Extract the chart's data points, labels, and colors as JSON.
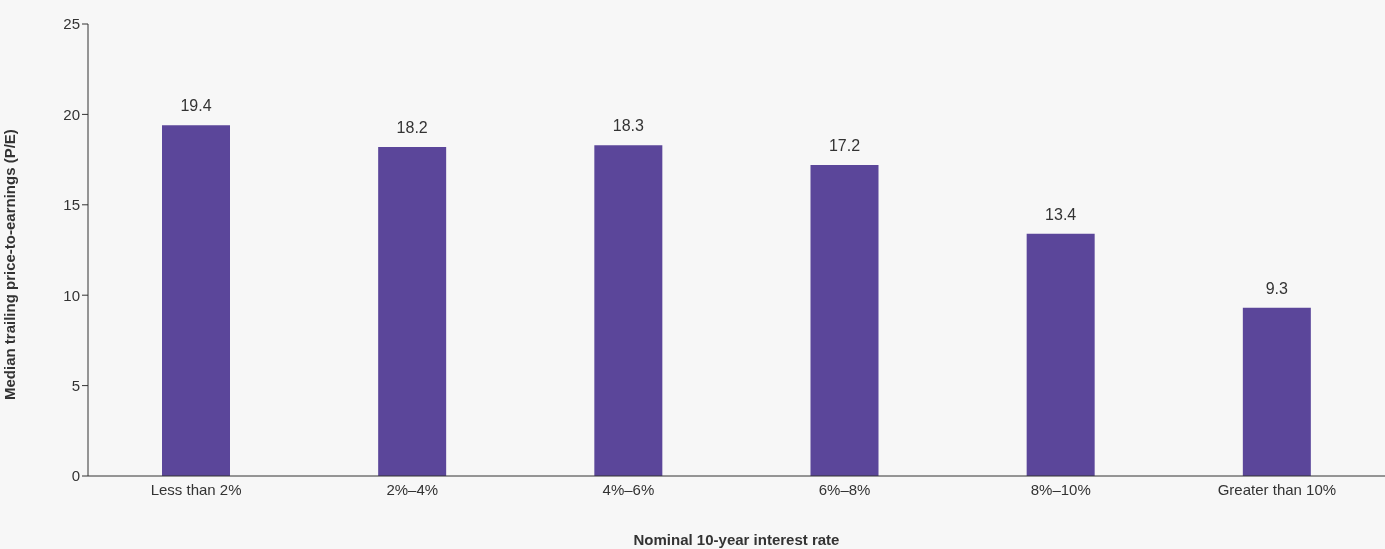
{
  "chart_data": {
    "type": "bar",
    "xlabel": "Nominal 10-year interest rate",
    "ylabel": "Median trailing price-to-earnings (P/E)",
    "categories": [
      "Less than 2%",
      "2%–4%",
      "4%–6%",
      "6%–8%",
      "8%–10%",
      "Greater than 10%"
    ],
    "values": [
      19.4,
      18.2,
      18.3,
      17.2,
      13.4,
      9.3
    ],
    "color": "#5b469a",
    "ylim": [
      0,
      25
    ],
    "yticks": [
      0,
      5,
      10,
      15,
      20,
      25
    ],
    "grid": false,
    "data_labels": true
  }
}
